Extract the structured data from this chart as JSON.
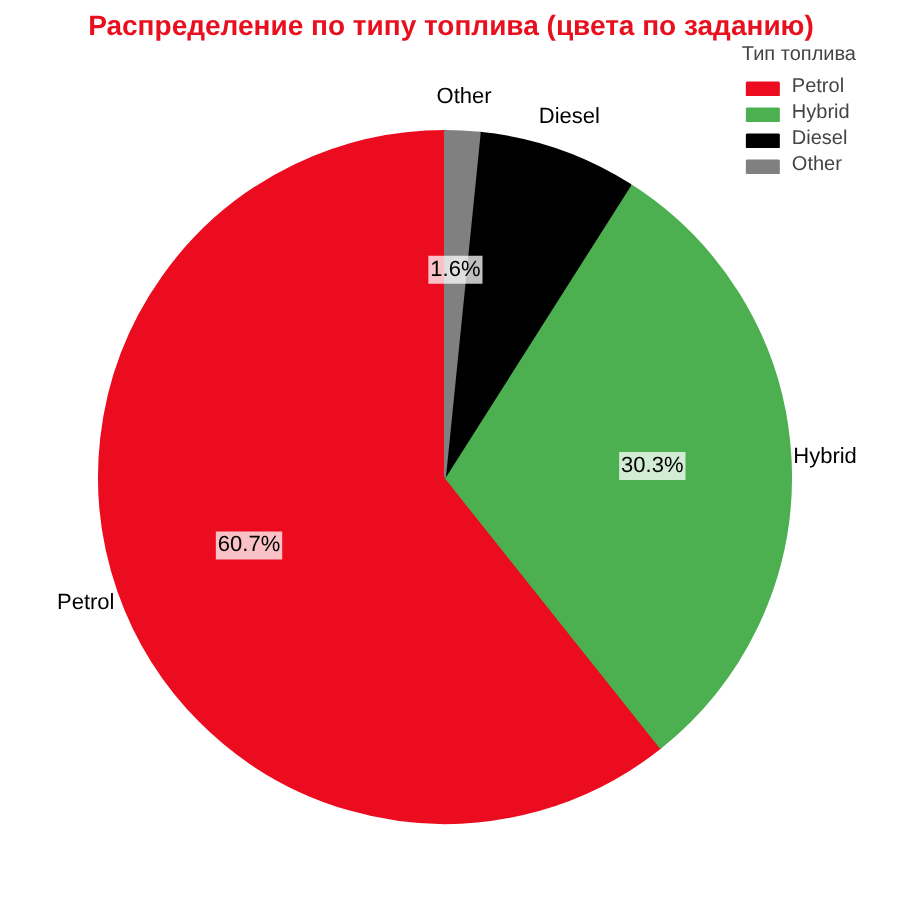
{
  "chart_data": {
    "type": "pie",
    "title": "Распределение по типу топлива (цвета по заданию)",
    "legend_title": "Тип топлива",
    "legend": "top right",
    "categories": [
      "Petrol",
      "Hybrid",
      "Diesel",
      "Other"
    ],
    "values": [
      60.7,
      30.3,
      7.4,
      1.6
    ],
    "colors": [
      "#ec0c1f",
      "#4caf50",
      "#000000",
      "#808080"
    ],
    "value_labels": [
      "60.7%",
      "30.3%",
      null,
      "1.6%"
    ]
  }
}
